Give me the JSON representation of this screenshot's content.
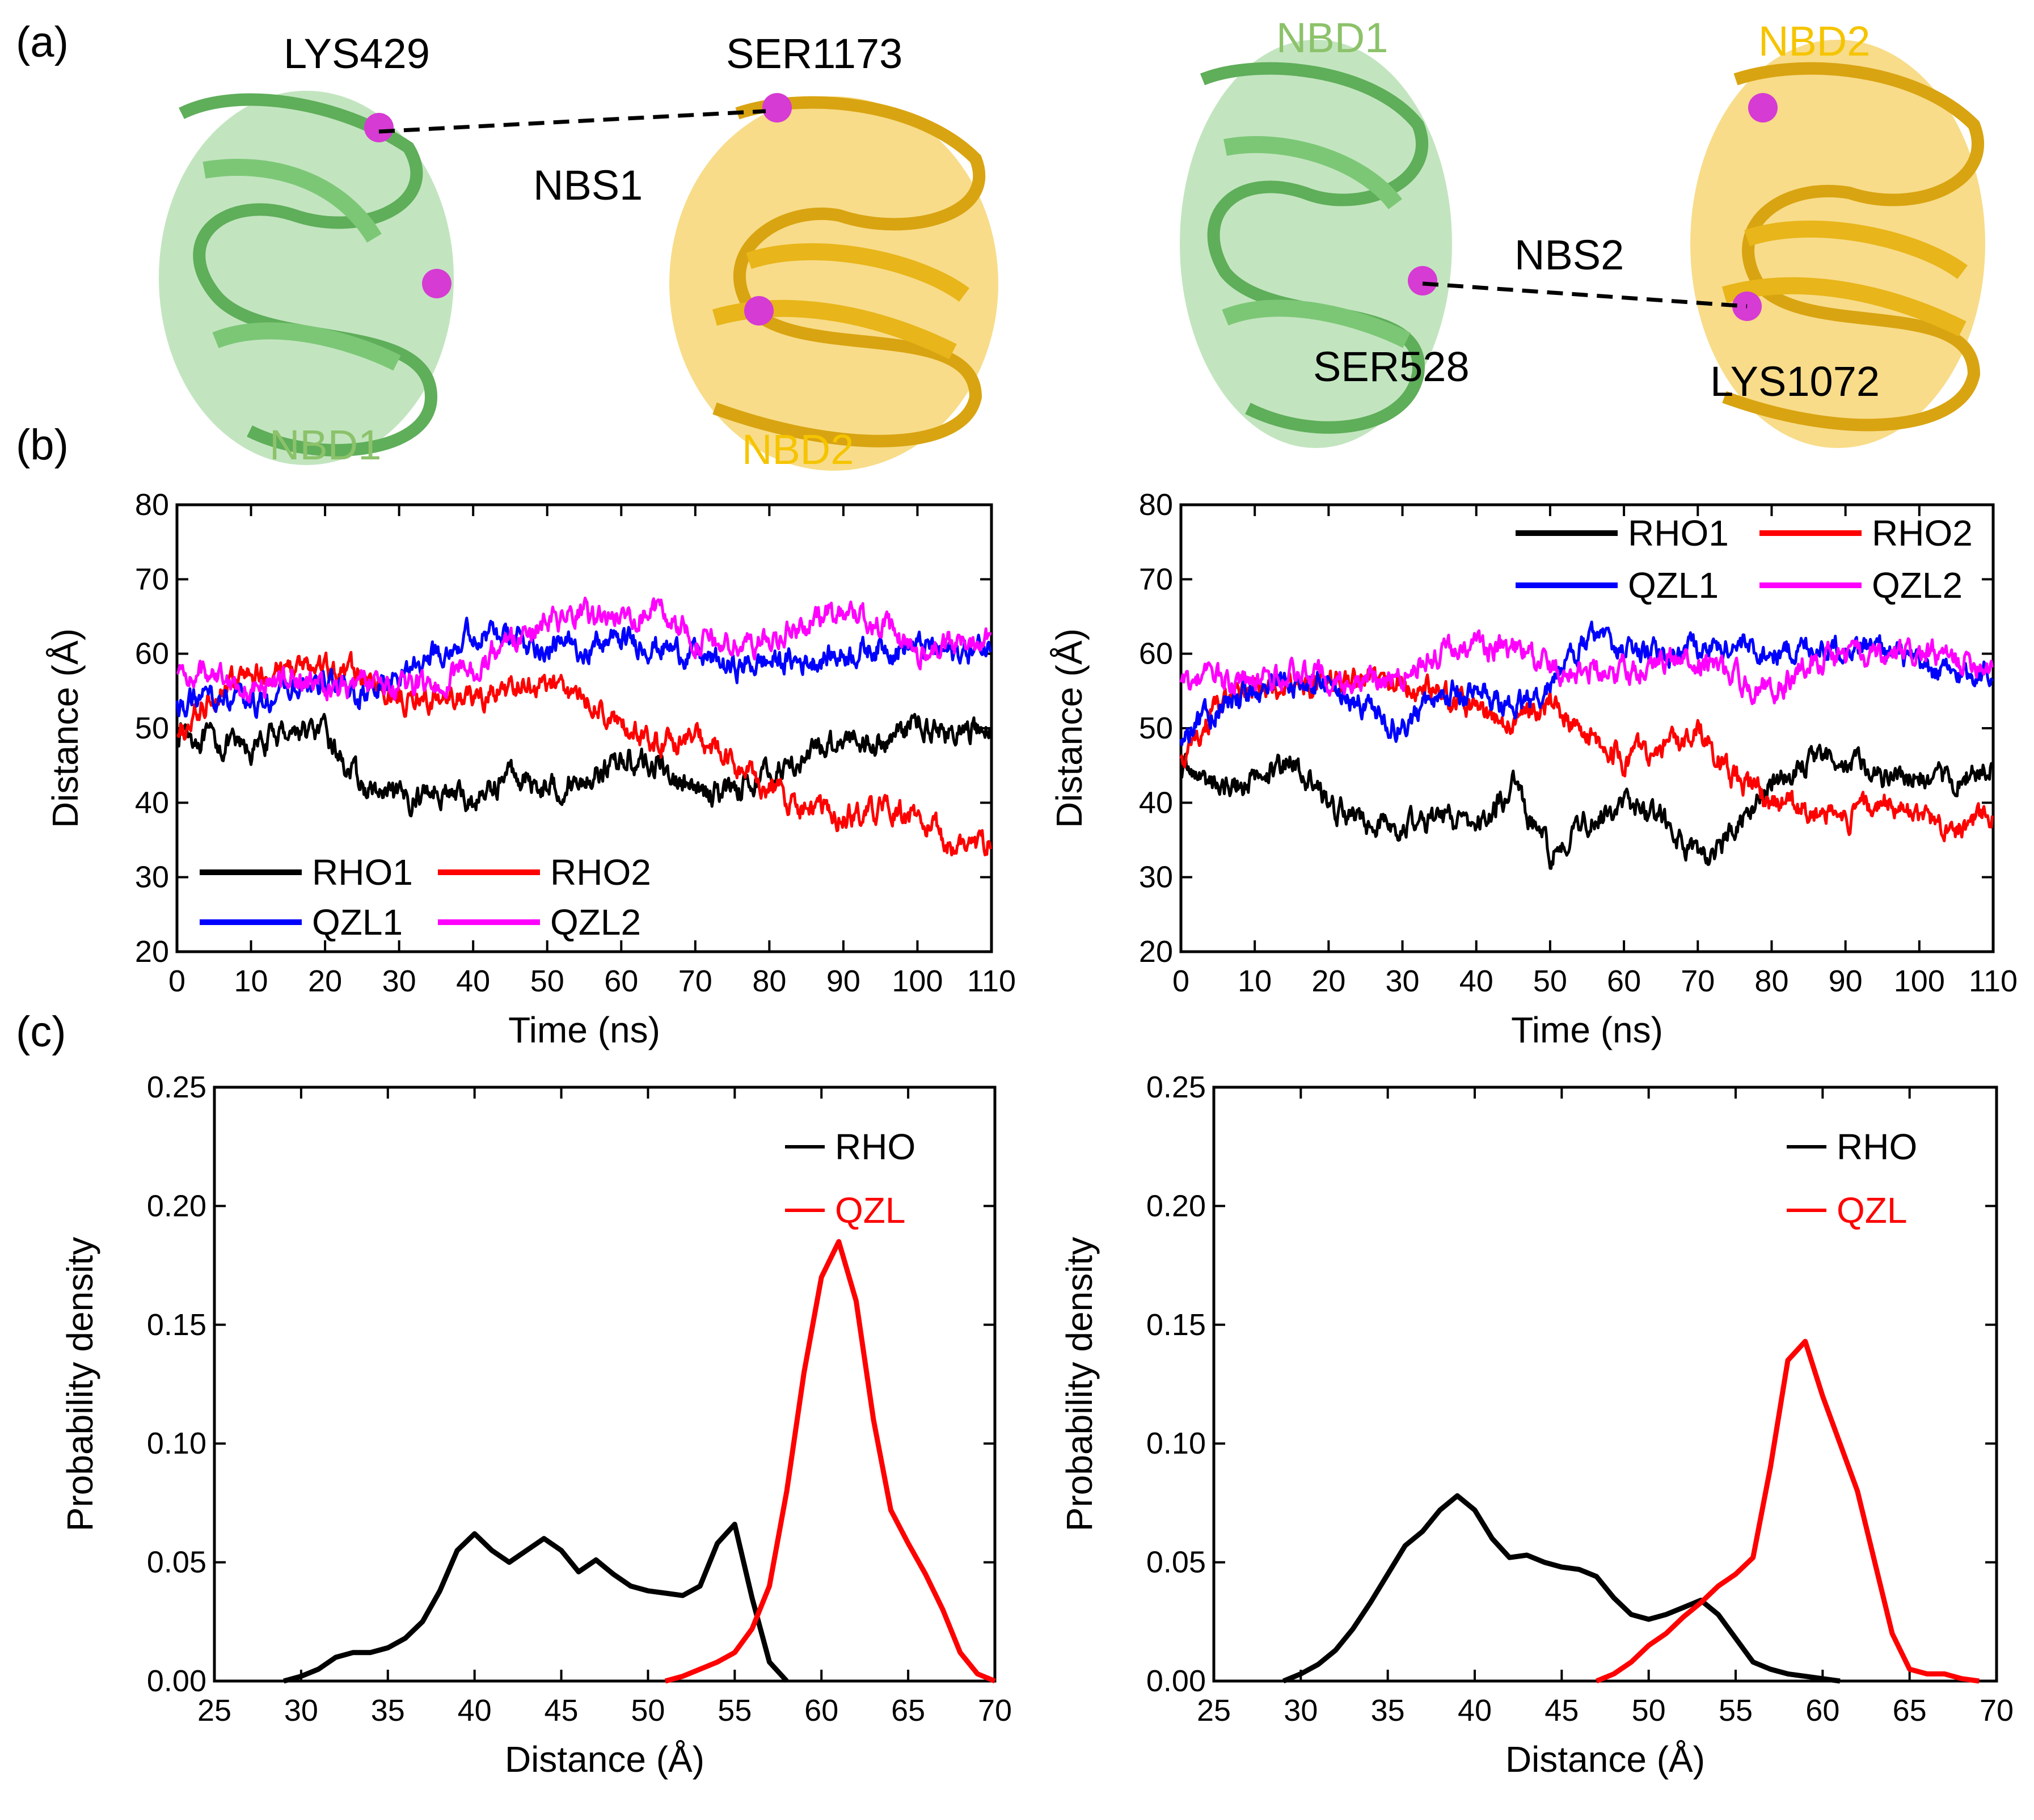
{
  "panel_labels": [
    "(a)",
    "(b)",
    "(c)"
  ],
  "structure_left": {
    "residue_top_left": "LYS429",
    "residue_top_right": "SER1173",
    "site": "NBS1",
    "domain_left": "NBD1",
    "domain_right": "NBD2"
  },
  "structure_right": {
    "domain_left": "NBD1",
    "domain_right": "NBD2",
    "site": "NBS2",
    "residue_left": "SER528",
    "residue_right": "LYS1072"
  },
  "colors": {
    "nbd1": "#8fd08a",
    "nbd2": "#f2c028",
    "nbd1_label": "#8cc26a",
    "nbd2_label": "#f5c400",
    "sphere": "#d63bd3",
    "RHO1": "#000000",
    "RHO2": "#ff0000",
    "QZL1": "#0000ff",
    "QZL2": "#ff00ff",
    "RHO": "#000000",
    "QZL": "#ff0000"
  },
  "chart_data": [
    {
      "id": "b-left",
      "type": "line",
      "xlabel": "Time  (ns)",
      "ylabel": "Distance (Å)",
      "xlim": [
        0,
        110
      ],
      "ylim": [
        20,
        80
      ],
      "xticks": [
        "0",
        "10",
        "20",
        "30",
        "40",
        "50",
        "60",
        "70",
        "80",
        "90",
        "100",
        "110"
      ],
      "yticks": [
        "20",
        "30",
        "40",
        "50",
        "60",
        "70",
        "80"
      ],
      "legend": [
        "RHO1",
        "RHO2",
        "QZL1",
        "QZL2"
      ],
      "series": [
        {
          "name": "RHO1",
          "x": [
            0,
            5,
            10,
            15,
            20,
            25,
            30,
            35,
            40,
            45,
            50,
            55,
            60,
            65,
            70,
            75,
            80,
            85,
            90,
            95,
            100,
            105,
            110
          ],
          "y": [
            50,
            48,
            47,
            50,
            49,
            42,
            40,
            42,
            40,
            44,
            42,
            43,
            46,
            45,
            41,
            42,
            44,
            46,
            49,
            48,
            51,
            49,
            50
          ]
        },
        {
          "name": "RHO2",
          "x": [
            0,
            5,
            10,
            15,
            20,
            25,
            30,
            35,
            40,
            45,
            50,
            55,
            60,
            65,
            70,
            75,
            80,
            85,
            90,
            95,
            100,
            105,
            110
          ],
          "y": [
            48,
            55,
            57,
            58,
            58,
            57,
            54,
            54,
            54,
            55,
            56,
            54,
            50,
            48,
            49,
            45,
            42,
            39,
            38,
            39,
            38,
            34,
            35
          ]
        },
        {
          "name": "QZL1",
          "x": [
            0,
            5,
            10,
            15,
            20,
            25,
            30,
            35,
            40,
            45,
            50,
            55,
            60,
            65,
            70,
            75,
            80,
            85,
            90,
            95,
            100,
            105,
            110
          ],
          "y": [
            53,
            54,
            53,
            55,
            56,
            54,
            57,
            60,
            63,
            62,
            61,
            61,
            62,
            61,
            60,
            58,
            59,
            59,
            60,
            61,
            61,
            60,
            61
          ]
        },
        {
          "name": "QZL2",
          "x": [
            0,
            5,
            10,
            15,
            20,
            25,
            30,
            35,
            40,
            45,
            50,
            55,
            60,
            65,
            70,
            75,
            80,
            85,
            90,
            95,
            100,
            105,
            110
          ],
          "y": [
            57,
            58,
            55,
            57,
            55,
            56,
            55,
            56,
            58,
            62,
            64,
            65,
            65,
            66,
            62,
            61,
            62,
            64,
            66,
            64,
            60,
            61,
            63
          ]
        }
      ]
    },
    {
      "id": "b-right",
      "type": "line",
      "xlabel": "Time (ns)",
      "ylabel": "Distance (Å)",
      "xlim": [
        0,
        110
      ],
      "ylim": [
        20,
        80
      ],
      "xticks": [
        "0",
        "10",
        "20",
        "30",
        "40",
        "50",
        "60",
        "70",
        "80",
        "90",
        "100",
        "110"
      ],
      "yticks": [
        "20",
        "30",
        "40",
        "50",
        "60",
        "70",
        "80"
      ],
      "legend": [
        "RHO1",
        "RHO2",
        "QZL1",
        "QZL2"
      ],
      "series": [
        {
          "name": "RHO1",
          "x": [
            0,
            5,
            10,
            15,
            20,
            25,
            30,
            35,
            40,
            45,
            50,
            55,
            60,
            65,
            70,
            75,
            80,
            85,
            90,
            95,
            100,
            105,
            110
          ],
          "y": [
            45,
            42,
            43,
            46,
            40,
            37,
            37,
            38,
            37,
            42,
            33,
            38,
            40,
            38,
            32,
            36,
            43,
            45,
            46,
            44,
            44,
            43,
            45
          ]
        },
        {
          "name": "RHO2",
          "x": [
            0,
            5,
            10,
            15,
            20,
            25,
            30,
            35,
            40,
            45,
            50,
            55,
            60,
            65,
            70,
            75,
            80,
            85,
            90,
            95,
            100,
            105,
            110
          ],
          "y": [
            45,
            53,
            55,
            55,
            56,
            57,
            56,
            55,
            52,
            51,
            53,
            50,
            46,
            48,
            50,
            43,
            40,
            39,
            38,
            40,
            38,
            37,
            38
          ]
        },
        {
          "name": "QZL1",
          "x": [
            0,
            5,
            10,
            15,
            20,
            25,
            30,
            35,
            40,
            45,
            50,
            55,
            60,
            65,
            70,
            75,
            80,
            85,
            90,
            95,
            100,
            105,
            110
          ],
          "y": [
            48,
            53,
            55,
            56,
            56,
            53,
            50,
            55,
            55,
            52,
            56,
            62,
            60,
            60,
            61,
            61,
            60,
            61,
            61,
            61,
            58,
            57,
            58
          ]
        },
        {
          "name": "QZL2",
          "x": [
            0,
            5,
            10,
            15,
            20,
            25,
            30,
            35,
            40,
            45,
            50,
            55,
            60,
            65,
            70,
            75,
            80,
            85,
            90,
            95,
            100,
            105,
            110
          ],
          "y": [
            56,
            57,
            56,
            57,
            57,
            56,
            57,
            60,
            61,
            61,
            58,
            58,
            58,
            59,
            59,
            57,
            55,
            59,
            60,
            59,
            60,
            59,
            59
          ]
        }
      ]
    },
    {
      "id": "c-left",
      "type": "line",
      "xlabel": "Distance (Å)",
      "ylabel": "Probability density",
      "xlim": [
        25,
        70
      ],
      "ylim": [
        0,
        0.25
      ],
      "xticks": [
        "25",
        "30",
        "35",
        "40",
        "45",
        "50",
        "55",
        "60",
        "65",
        "70"
      ],
      "yticks": [
        "0.00",
        "0.05",
        "0.10",
        "0.15",
        "0.20",
        "0.25"
      ],
      "legend": [
        "RHO",
        "QZL"
      ],
      "series": [
        {
          "name": "RHO",
          "x": [
            29,
            30,
            31,
            32,
            33,
            34,
            35,
            36,
            37,
            38,
            39,
            40,
            41,
            42,
            43,
            44,
            45,
            46,
            47,
            48,
            49,
            50,
            51,
            52,
            53,
            54,
            55,
            56,
            57,
            58
          ],
          "y": [
            0,
            0.002,
            0.005,
            0.01,
            0.012,
            0.012,
            0.014,
            0.018,
            0.025,
            0.038,
            0.055,
            0.062,
            0.055,
            0.05,
            0.055,
            0.06,
            0.055,
            0.046,
            0.051,
            0.045,
            0.04,
            0.038,
            0.037,
            0.036,
            0.04,
            0.058,
            0.066,
            0.035,
            0.008,
            0
          ]
        },
        {
          "name": "QZL",
          "x": [
            51,
            52,
            53,
            54,
            55,
            56,
            57,
            58,
            59,
            60,
            61,
            62,
            63,
            64,
            65,
            66,
            67,
            68,
            69,
            70
          ],
          "y": [
            0,
            0.002,
            0.005,
            0.008,
            0.012,
            0.022,
            0.04,
            0.08,
            0.13,
            0.17,
            0.185,
            0.16,
            0.11,
            0.072,
            0.058,
            0.045,
            0.03,
            0.012,
            0.003,
            0
          ]
        }
      ]
    },
    {
      "id": "c-right",
      "type": "line",
      "xlabel": "Distance (Å)",
      "ylabel": "Probability density",
      "xlim": [
        25,
        70
      ],
      "ylim": [
        0,
        0.25
      ],
      "xticks": [
        "25",
        "30",
        "35",
        "40",
        "45",
        "50",
        "55",
        "60",
        "65",
        "70"
      ],
      "yticks": [
        "0.00",
        "0.05",
        "0.10",
        "0.15",
        "0.20",
        "0.25"
      ],
      "legend": [
        "RHO",
        "QZL"
      ],
      "series": [
        {
          "name": "RHO",
          "x": [
            29,
            30,
            31,
            32,
            33,
            34,
            35,
            36,
            37,
            38,
            39,
            40,
            41,
            42,
            43,
            44,
            45,
            46,
            47,
            48,
            49,
            50,
            51,
            52,
            53,
            54,
            55,
            56,
            57,
            58,
            59,
            60,
            61
          ],
          "y": [
            0,
            0.003,
            0.007,
            0.013,
            0.022,
            0.033,
            0.045,
            0.057,
            0.063,
            0.072,
            0.078,
            0.072,
            0.06,
            0.052,
            0.053,
            0.05,
            0.048,
            0.047,
            0.044,
            0.035,
            0.028,
            0.026,
            0.028,
            0.031,
            0.034,
            0.028,
            0.018,
            0.008,
            0.005,
            0.003,
            0.002,
            0.001,
            0
          ]
        },
        {
          "name": "QZL",
          "x": [
            47,
            48,
            49,
            50,
            51,
            52,
            53,
            54,
            55,
            56,
            57,
            58,
            59,
            60,
            61,
            62,
            63,
            64,
            65,
            66,
            67,
            68,
            69
          ],
          "y": [
            0,
            0.003,
            0.008,
            0.015,
            0.02,
            0.027,
            0.033,
            0.04,
            0.045,
            0.052,
            0.09,
            0.135,
            0.143,
            0.12,
            0.1,
            0.08,
            0.05,
            0.02,
            0.005,
            0.003,
            0.003,
            0.001,
            0
          ]
        }
      ]
    }
  ]
}
